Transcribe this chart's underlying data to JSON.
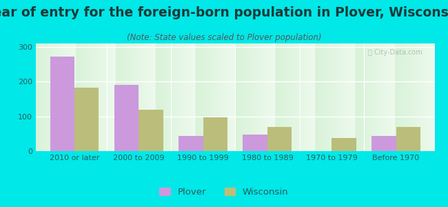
{
  "title": "Year of entry for the foreign-born population in Plover, Wisconsin",
  "subtitle": "(Note: State values scaled to Plover population)",
  "categories": [
    "2010 or later",
    "2000 to 2009",
    "1990 to 1999",
    "1980 to 1989",
    "1970 to 1979",
    "Before 1970"
  ],
  "plover_values": [
    272,
    190,
    43,
    47,
    0,
    44
  ],
  "wisconsin_values": [
    183,
    120,
    97,
    70,
    38,
    70
  ],
  "plover_color": "#cc99dd",
  "wisconsin_color": "#bbbe7a",
  "background_outer": "#00e8e8",
  "ylim": [
    0,
    310
  ],
  "yticks": [
    0,
    100,
    200,
    300
  ],
  "bar_width": 0.38,
  "title_fontsize": 13.5,
  "subtitle_fontsize": 8.5,
  "tick_fontsize": 8,
  "legend_fontsize": 9.5,
  "title_color": "#1a3a3a",
  "subtitle_color": "#555555",
  "tick_color": "#2a5a5a"
}
